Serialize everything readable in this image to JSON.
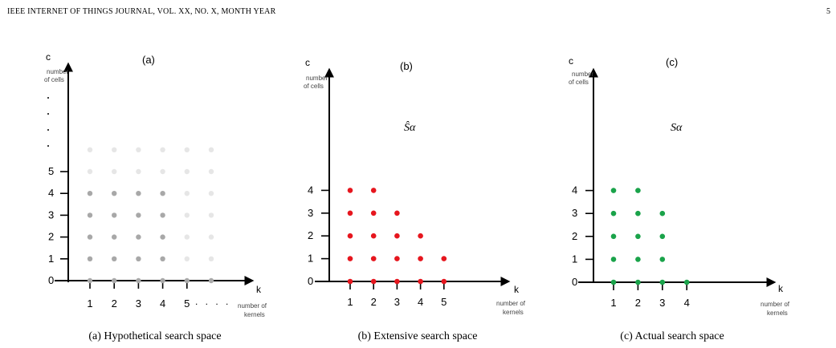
{
  "header": {
    "title": "IEEE INTERNET OF THINGS JOURNAL, VOL. XX, NO. X, MONTH YEAR",
    "page": "5"
  },
  "colors": {
    "gray": "#a8a8a8",
    "faint": "#e6e6e6",
    "red": "#e6161e",
    "green": "#1aa34a"
  },
  "panels": [
    {
      "tag": "(a)",
      "caption": "(a) Hypothetical search space",
      "y_axis": {
        "name": "c",
        "desc": [
          "number",
          "of cells"
        ],
        "ticks": [
          "0",
          "1",
          "2",
          "3",
          "4",
          "5"
        ],
        "ellipsis": true
      },
      "x_axis": {
        "name": "k",
        "desc": [
          "number of",
          "kernels"
        ],
        "ticks": [
          "1",
          "2",
          "3",
          "4",
          "5"
        ],
        "ellipsis": ". . . ."
      },
      "set_label": ""
    },
    {
      "tag": "(b)",
      "caption": "(b) Extensive search space",
      "y_axis": {
        "name": "c",
        "desc": [
          "number",
          "of cells"
        ],
        "ticks": [
          "0",
          "1",
          "2",
          "3",
          "4"
        ]
      },
      "x_axis": {
        "name": "k",
        "desc": [
          "number of",
          "kernels"
        ],
        "ticks": [
          "1",
          "2",
          "3",
          "4",
          "5"
        ]
      },
      "set_label": "Ŝα"
    },
    {
      "tag": "(c)",
      "caption": "(c) Actual search space",
      "y_axis": {
        "name": "c",
        "desc": [
          "number",
          "of cells"
        ],
        "ticks": [
          "0",
          "1",
          "2",
          "3",
          "4"
        ]
      },
      "x_axis": {
        "name": "k",
        "desc": [
          "number of",
          "kernels"
        ],
        "ticks": [
          "1",
          "2",
          "3",
          "4"
        ]
      },
      "set_label": "Sα"
    }
  ],
  "chart_data": [
    {
      "type": "scatter",
      "title": "(a)",
      "xlabel": "k number of kernels",
      "ylabel": "c number of cells",
      "series": [
        {
          "points": [
            [
              1,
              0
            ],
            [
              2,
              0
            ],
            [
              3,
              0
            ],
            [
              4,
              0
            ],
            [
              5,
              0
            ],
            [
              6,
              0
            ],
            [
              1,
              1
            ],
            [
              2,
              1
            ],
            [
              3,
              1
            ],
            [
              4,
              1
            ],
            [
              1,
              2
            ],
            [
              2,
              2
            ],
            [
              3,
              2
            ],
            [
              4,
              2
            ],
            [
              1,
              3
            ],
            [
              2,
              3
            ],
            [
              3,
              3
            ],
            [
              4,
              3
            ],
            [
              1,
              4
            ],
            [
              2,
              4
            ],
            [
              3,
              4
            ],
            [
              4,
              4
            ]
          ],
          "color": "#a8a8a8"
        },
        {
          "points": [
            [
              5,
              1
            ],
            [
              6,
              1
            ],
            [
              5,
              2
            ],
            [
              6,
              2
            ],
            [
              5,
              3
            ],
            [
              6,
              3
            ],
            [
              5,
              4
            ],
            [
              6,
              4
            ],
            [
              1,
              5
            ],
            [
              2,
              5
            ],
            [
              3,
              5
            ],
            [
              4,
              5
            ],
            [
              5,
              5
            ],
            [
              6,
              5
            ],
            [
              1,
              6
            ],
            [
              2,
              6
            ],
            [
              3,
              6
            ],
            [
              4,
              6
            ],
            [
              5,
              6
            ],
            [
              6,
              6
            ]
          ],
          "color": "#e6e6e6"
        }
      ]
    },
    {
      "type": "scatter",
      "title": "(b)",
      "xlabel": "k number of kernels",
      "ylabel": "c number of cells",
      "series": [
        {
          "points": [
            [
              1,
              0
            ],
            [
              2,
              0
            ],
            [
              3,
              0
            ],
            [
              4,
              0
            ],
            [
              5,
              0
            ],
            [
              1,
              1
            ],
            [
              2,
              1
            ],
            [
              3,
              1
            ],
            [
              4,
              1
            ],
            [
              5,
              1
            ],
            [
              1,
              2
            ],
            [
              2,
              2
            ],
            [
              3,
              2
            ],
            [
              4,
              2
            ],
            [
              1,
              3
            ],
            [
              2,
              3
            ],
            [
              3,
              3
            ],
            [
              1,
              4
            ],
            [
              2,
              4
            ]
          ],
          "color": "#e6161e"
        }
      ]
    },
    {
      "type": "scatter",
      "title": "(c)",
      "xlabel": "k number of kernels",
      "ylabel": "c number of cells",
      "series": [
        {
          "points": [
            [
              1,
              0
            ],
            [
              2,
              0
            ],
            [
              3,
              0
            ],
            [
              4,
              0
            ],
            [
              1,
              1
            ],
            [
              2,
              1
            ],
            [
              3,
              1
            ],
            [
              1,
              2
            ],
            [
              2,
              2
            ],
            [
              3,
              2
            ],
            [
              1,
              3
            ],
            [
              2,
              3
            ],
            [
              3,
              3
            ],
            [
              1,
              4
            ],
            [
              2,
              4
            ]
          ],
          "color": "#1aa34a"
        }
      ]
    }
  ]
}
